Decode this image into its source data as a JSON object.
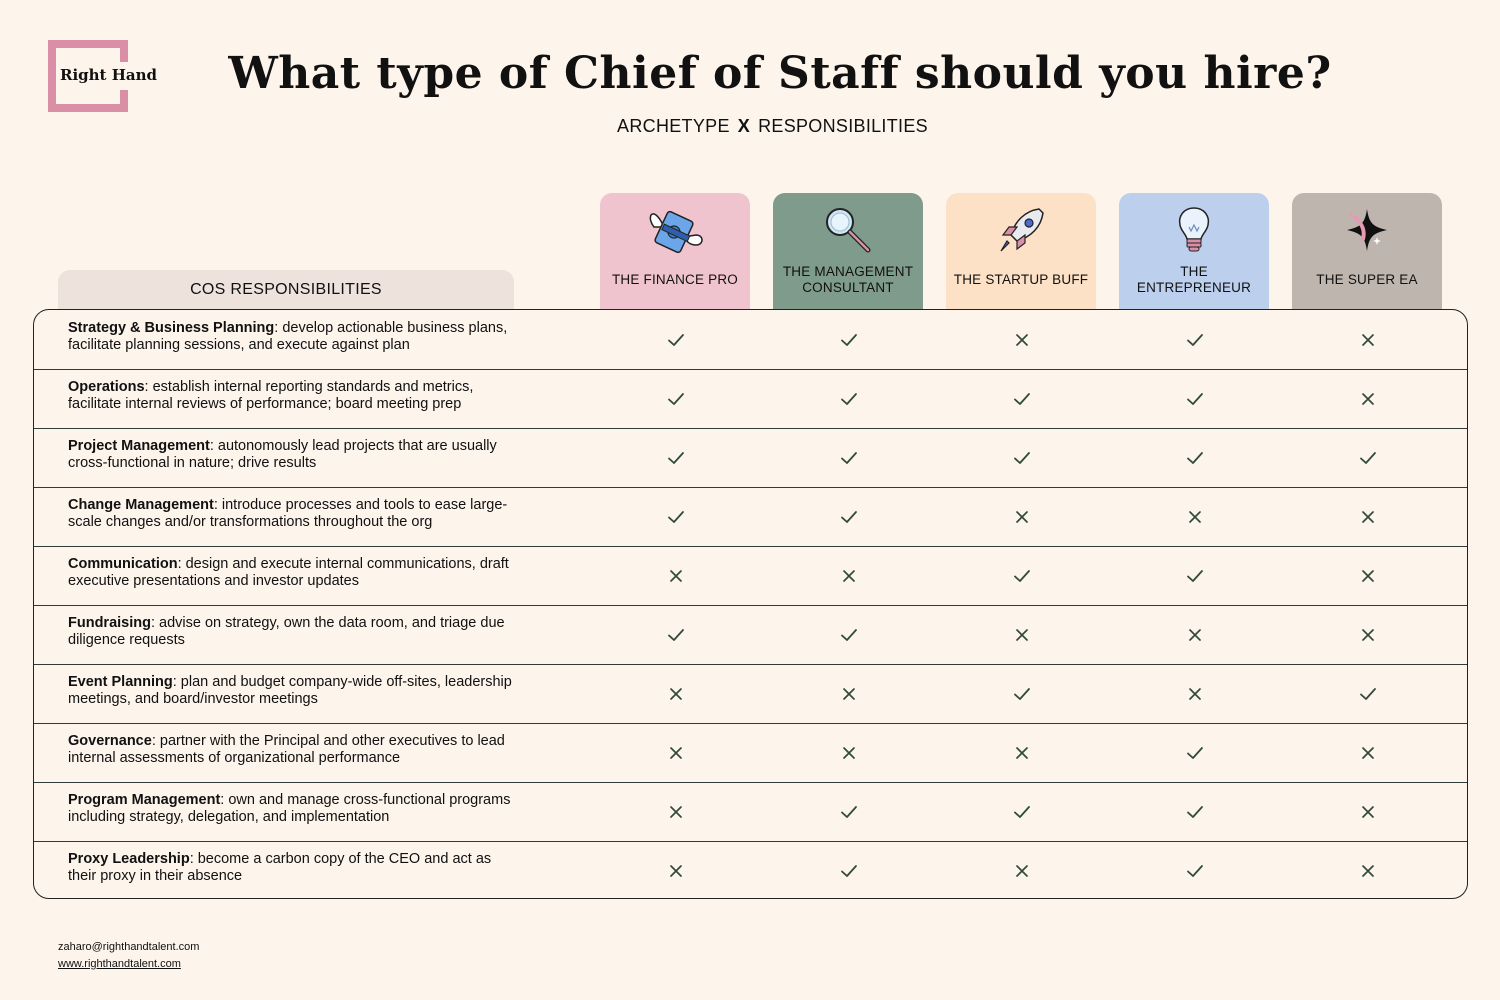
{
  "brand": {
    "logo_text": "Right Hand"
  },
  "header": {
    "title": "What type of Chief of Staff should you hire?",
    "subtitle_left": "ARCHETYPE",
    "subtitle_mid": "X",
    "subtitle_right": "RESPONSIBILITIES"
  },
  "table": {
    "responsibilities_header": "COS RESPONSIBILITIES",
    "archetypes": [
      {
        "label": "THE FINANCE PRO",
        "color": "#efc4cf",
        "icon": "money-with-wings-icon"
      },
      {
        "label": "THE MANAGEMENT CONSULTANT",
        "color": "#7f9b8c",
        "icon": "magnifying-glass-icon"
      },
      {
        "label": "THE STARTUP BUFF",
        "color": "#fde1c6",
        "icon": "rocket-icon"
      },
      {
        "label": "THE ENTREPRENEUR",
        "color": "#bcd0ee",
        "icon": "lightbulb-icon"
      },
      {
        "label": "THE SUPER EA",
        "color": "#beb5ae",
        "icon": "sparkle-icon"
      }
    ],
    "rows": [
      {
        "name": "Strategy & Business Planning",
        "text": ": develop actionable business plans, facilitate planning sessions, and execute against plan",
        "marks": [
          "check",
          "check",
          "cross",
          "check",
          "cross"
        ]
      },
      {
        "name": "Operations",
        "text": ": establish internal reporting standards and metrics, facilitate internal reviews of performance; board meeting prep",
        "marks": [
          "check",
          "check",
          "check",
          "check",
          "cross"
        ]
      },
      {
        "name": "Project Management",
        "text": ": autonomously lead projects that are usually cross-functional in nature; drive results",
        "marks": [
          "check",
          "check",
          "check",
          "check",
          "check"
        ]
      },
      {
        "name": "Change Management",
        "text": ": introduce processes and tools to ease large-scale changes and/or transformations throughout the org",
        "marks": [
          "check",
          "check",
          "cross",
          "cross",
          "cross"
        ]
      },
      {
        "name": "Communication",
        "text": ": design and execute internal communications, draft executive presentations and investor updates",
        "marks": [
          "cross",
          "cross",
          "check",
          "check",
          "cross"
        ]
      },
      {
        "name": "Fundraising",
        "text": ": advise on strategy, own the data room, and triage due diligence requests",
        "marks": [
          "check",
          "check",
          "cross",
          "cross",
          "cross"
        ]
      },
      {
        "name": "Event Planning",
        "text": ": plan and budget company-wide off-sites, leadership meetings, and board/investor meetings",
        "marks": [
          "cross",
          "cross",
          "check",
          "cross",
          "check"
        ]
      },
      {
        "name": "Governance",
        "text": ": partner with the Principal and other executives to lead internal assessments of organizational performance",
        "marks": [
          "cross",
          "cross",
          "cross",
          "check",
          "cross"
        ]
      },
      {
        "name": "Program Management",
        "text": ": own and manage cross-functional programs including strategy, delegation, and implementation",
        "marks": [
          "cross",
          "check",
          "check",
          "check",
          "cross"
        ]
      },
      {
        "name": "Proxy Leadership",
        "text": ": become a carbon copy of the CEO and act as their proxy in their absence",
        "marks": [
          "cross",
          "check",
          "cross",
          "check",
          "cross"
        ]
      }
    ]
  },
  "footer": {
    "email": "zaharo@righthandtalent.com",
    "website": "www.righthandtalent.com"
  }
}
